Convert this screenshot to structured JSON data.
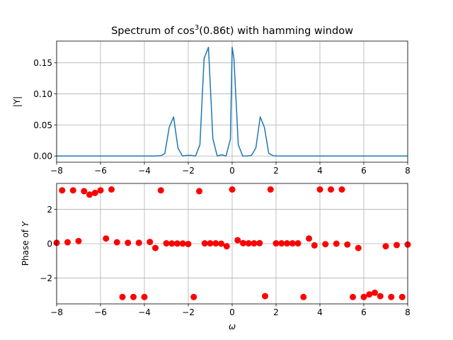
{
  "chart_data": [
    {
      "type": "line",
      "title": "Spectrum of cos³(0.86t) with hamming window",
      "xlabel": "",
      "ylabel": "|Y|",
      "xlim": [
        -8,
        8
      ],
      "ylim": [
        -0.01,
        0.185
      ],
      "xticks": [
        "−8",
        "−6",
        "−4",
        "−2",
        "0",
        "2",
        "4",
        "6",
        "8"
      ],
      "yticks": [
        "0.00",
        "0.05",
        "0.10",
        "0.15"
      ],
      "ytick_values": [
        0,
        0.05,
        0.1,
        0.15
      ],
      "grid": true,
      "color": "#1f77b4",
      "series": [
        {
          "x": [
            -8,
            -7.5,
            -7,
            -6.5,
            -6,
            -5.5,
            -5,
            -4.5,
            -4,
            -3.5,
            -3.25,
            -3.07,
            -2.87,
            -2.67,
            -2.47,
            -2.27,
            -2.07,
            -1.87,
            -1.67,
            -1.47,
            -1.28,
            -1.08,
            -0.88,
            -0.68,
            -0.48,
            -0.28,
            -0.08,
            0,
            0.08,
            0.28,
            0.48,
            0.68,
            0.88,
            1.08,
            1.28,
            1.47,
            1.67,
            1.87,
            2.07,
            2.27,
            2.47,
            2.67,
            2.87,
            3.07,
            3.25,
            3.5,
            4,
            4.5,
            5,
            5.5,
            6,
            6.5,
            7,
            7.5,
            8
          ],
          "values": [
            0,
            0,
            0,
            0,
            0,
            0,
            0,
            0,
            0,
            0,
            0.0005,
            0.004,
            0.046,
            0.063,
            0.013,
            0,
            0.001,
            0.001,
            0,
            0.018,
            0.157,
            0.175,
            0.028,
            0,
            0.002,
            0,
            0.027,
            0.175,
            0.157,
            0.018,
            0,
            0,
            0.001,
            0.013,
            0.063,
            0.046,
            0.004,
            0.0005,
            0,
            0,
            0,
            0,
            0,
            0,
            0,
            0,
            0,
            0,
            0,
            0,
            0,
            0,
            0,
            0,
            0
          ]
        }
      ]
    },
    {
      "type": "scatter",
      "title": "",
      "xlabel": "ω",
      "ylabel": "Phase of Y",
      "xlim": [
        -8,
        8
      ],
      "ylim": [
        -3.5,
        3.5
      ],
      "xticks": [
        "−8",
        "−6",
        "−4",
        "−2",
        "0",
        "2",
        "4",
        "6",
        "8"
      ],
      "yticks": [
        "−2",
        "0",
        "2"
      ],
      "ytick_values": [
        -2,
        0,
        2
      ],
      "grid": true,
      "color": "#ff0000",
      "series": [
        {
          "x": [
            -8,
            -7.75,
            -7.5,
            -7.25,
            -7,
            -6.75,
            -6.5,
            -6.25,
            -6,
            -5.75,
            -5.5,
            -5.25,
            -5,
            -4.75,
            -4.5,
            -4.25,
            -4,
            -3.75,
            -3.5,
            -3.25,
            -3,
            -2.75,
            -2.5,
            -2.25,
            -2,
            -1.75,
            -1.5,
            -1.25,
            -1,
            -0.75,
            -0.5,
            -0.25,
            0,
            0.25,
            0.5,
            0.75,
            1,
            1.25,
            1.5,
            1.75,
            2,
            2.25,
            2.5,
            2.75,
            3,
            3.25,
            3.5,
            3.75,
            4,
            4.25,
            4.5,
            4.75,
            5,
            5.25,
            5.5,
            5.75,
            6,
            6.25,
            6.5,
            6.75,
            7,
            7.25,
            7.5,
            7.75,
            8
          ],
          "values": [
            0.05,
            3.1,
            0.08,
            3.1,
            0.15,
            3.05,
            2.85,
            2.95,
            3.1,
            0.3,
            3.15,
            0.08,
            -3.1,
            0.05,
            -3.1,
            0.05,
            -3.1,
            0.1,
            -0.25,
            3.1,
            0.02,
            0.01,
            0.01,
            0.01,
            -0.02,
            -3.1,
            3.05,
            0.02,
            0.02,
            0.02,
            0,
            -0.15,
            3.15,
            0.2,
            0.03,
            0.02,
            0.02,
            0.03,
            -3.05,
            3.15,
            0.02,
            0.02,
            0.02,
            0.02,
            0.02,
            -3.1,
            0.3,
            -0.1,
            3.15,
            -0.03,
            3.15,
            0,
            3.15,
            -0.05,
            -3.1,
            -0.25,
            -3.1,
            -2.95,
            -2.85,
            -3.05,
            -0.15,
            -3.1,
            -0.08,
            -3.1,
            -0.05
          ]
        }
      ]
    }
  ]
}
